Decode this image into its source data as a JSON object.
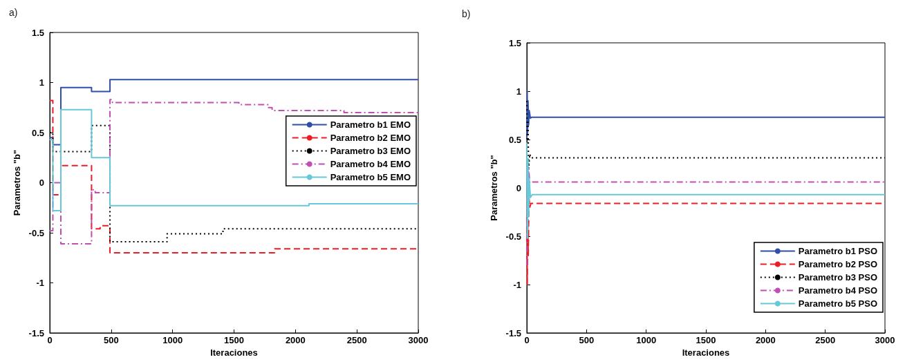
{
  "chart_data": [
    {
      "type": "step",
      "title": "a)",
      "xlabel": "Iteraciones",
      "ylabel": "Parametros \"b\"",
      "xlim": [
        0,
        3000
      ],
      "xticks": [
        0,
        500,
        1000,
        1500,
        2000,
        2500,
        3000
      ],
      "ylim": [
        -1.5,
        1.5
      ],
      "yticks": [
        -1.5,
        -1,
        -0.5,
        0,
        0.5,
        1,
        1.5
      ],
      "grid": false,
      "legend": "right",
      "marker": "none",
      "series": [
        {
          "name": "Parametro b1 EMO",
          "color": "#2f4fa8",
          "line_style": "solid",
          "x": [
            0,
            25,
            90,
            340,
            490,
            3000
          ],
          "values": [
            0.45,
            0.38,
            0.95,
            0.91,
            1.03,
            1.03
          ]
        },
        {
          "name": "Parametro b2 EMO",
          "color": "#ee1c24",
          "line_style": "dashed",
          "x": [
            0,
            25,
            90,
            340,
            410,
            490,
            1830,
            3000
          ],
          "values": [
            0.82,
            -0.12,
            0.17,
            -0.46,
            -0.43,
            -0.7,
            -0.66,
            -0.66
          ]
        },
        {
          "name": "Parametro b3 EMO",
          "color": "#000000",
          "line_style": "dotted",
          "x": [
            0,
            25,
            340,
            490,
            955,
            1410,
            3000
          ],
          "values": [
            0.5,
            0.31,
            0.57,
            -0.59,
            -0.51,
            -0.46,
            -0.46
          ]
        },
        {
          "name": "Parametro b4 EMO",
          "color": "#c04fb4",
          "line_style": "dashdot",
          "x": [
            0,
            25,
            90,
            340,
            370,
            490,
            510,
            1540,
            1780,
            1810,
            2395,
            3000
          ],
          "values": [
            -0.48,
            0,
            -0.61,
            -0.07,
            -0.1,
            0.83,
            0.8,
            0.78,
            0.75,
            0.72,
            0.7,
            0.7
          ]
        },
        {
          "name": "Parametro b5 EMO",
          "color": "#66c8d8",
          "line_style": "solid",
          "x": [
            0,
            25,
            90,
            340,
            490,
            2110,
            3000
          ],
          "values": [
            0.43,
            -0.28,
            0.73,
            0.25,
            -0.23,
            -0.21,
            -0.21
          ]
        }
      ]
    },
    {
      "type": "line",
      "title": "b)",
      "xlabel": "Iteraciones",
      "ylabel": "Parametros \"b\"",
      "xlim": [
        0,
        3000
      ],
      "xticks": [
        0,
        500,
        1000,
        1500,
        2000,
        2500,
        3000
      ],
      "ylim": [
        -1.5,
        1.5
      ],
      "yticks": [
        -1.5,
        -1,
        -0.5,
        0,
        0.5,
        1,
        1.5
      ],
      "grid": false,
      "legend": "bottom right",
      "marker": "none",
      "series": [
        {
          "name": "Parametro b1 PSO",
          "color": "#2f4fa8",
          "line_style": "solid",
          "x": [
            0,
            3,
            6,
            10,
            15,
            20,
            30,
            40,
            3000
          ],
          "values": [
            0.5,
            1.0,
            0.55,
            0.9,
            0.65,
            0.8,
            0.72,
            0.73,
            0.73
          ]
        },
        {
          "name": "Parametro b2 PSO",
          "color": "#ee1c24",
          "line_style": "dashed",
          "x": [
            0,
            4,
            8,
            12,
            18,
            25,
            35,
            3000
          ],
          "values": [
            -0.3,
            -1.0,
            -0.4,
            -0.7,
            -0.1,
            -0.2,
            -0.16,
            -0.16
          ]
        },
        {
          "name": "Parametro b3 PSO",
          "color": "#000000",
          "line_style": "dotted",
          "x": [
            0,
            5,
            10,
            15,
            25,
            35,
            3000
          ],
          "values": [
            0.9,
            0.4,
            0.7,
            0.2,
            0.35,
            0.31,
            0.31
          ]
        },
        {
          "name": "Parametro b4 PSO",
          "color": "#c04fb4",
          "line_style": "dashdot",
          "x": [
            0,
            5,
            10,
            15,
            25,
            35,
            3000
          ],
          "values": [
            -0.8,
            0.3,
            -0.4,
            0.2,
            0.05,
            0.06,
            0.06
          ]
        },
        {
          "name": "Parametro b5 PSO",
          "color": "#66c8d8",
          "line_style": "solid",
          "x": [
            0,
            5,
            10,
            15,
            20,
            30,
            45,
            3000
          ],
          "values": [
            0.47,
            -0.52,
            0.3,
            -0.3,
            0.1,
            -0.1,
            -0.07,
            -0.07
          ]
        }
      ]
    }
  ]
}
